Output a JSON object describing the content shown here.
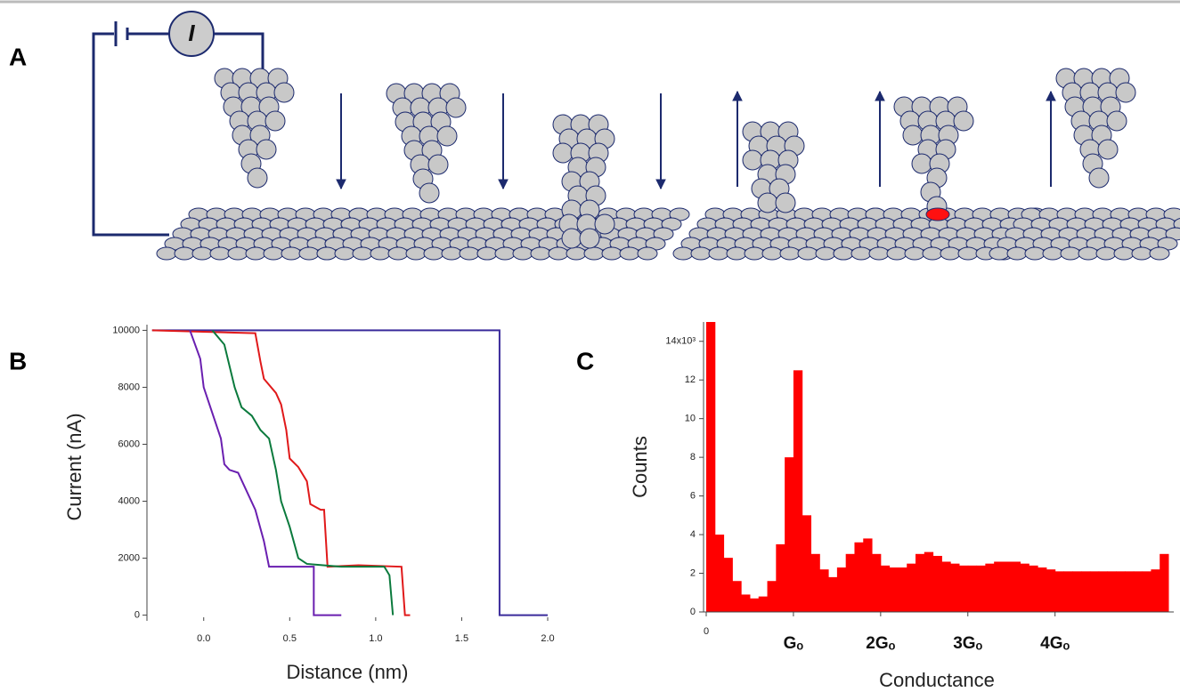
{
  "panels": {
    "a": "A",
    "b": "B",
    "c": "C",
    "meter": "I"
  },
  "chart_data": [
    {
      "type": "line",
      "x_label": "Distance (nm)",
      "y_label": "Current (nA)",
      "xlim": [
        -0.33,
        2.0
      ],
      "xticks": [
        {
          "value": 0,
          "label": "0.0"
        },
        0.5,
        {
          "value": 1,
          "label": "1.0"
        },
        1.5,
        {
          "value": 2,
          "label": "2.0"
        }
      ],
      "ylim": [
        -200,
        10200
      ],
      "yticks": [
        0,
        2000,
        4000,
        6000,
        8000,
        10000
      ],
      "series": [
        {
          "color": "#3a2b9b",
          "x": [
            -0.3,
            1.72,
            1.72,
            2.0
          ],
          "values": [
            10000,
            10000,
            0,
            0
          ]
        },
        {
          "color": "#e0191a",
          "x": [
            -0.3,
            0.3,
            0.33,
            0.35,
            0.42,
            0.45,
            0.48,
            0.5,
            0.55,
            0.6,
            0.62,
            0.68,
            0.7,
            0.72,
            0.9,
            1.15,
            1.17,
            1.2
          ],
          "values": [
            10000,
            9900,
            8900,
            8300,
            7800,
            7400,
            6500,
            5500,
            5200,
            4700,
            3900,
            3700,
            3700,
            1700,
            1750,
            1700,
            0,
            0
          ]
        },
        {
          "color": "#0b7a3d",
          "x": [
            0.05,
            0.12,
            0.18,
            0.22,
            0.28,
            0.33,
            0.38,
            0.42,
            0.45,
            0.5,
            0.55,
            0.6,
            0.8,
            1.05,
            1.08,
            1.1
          ],
          "values": [
            10000,
            9500,
            8000,
            7300,
            7000,
            6500,
            6200,
            5100,
            4000,
            3100,
            2000,
            1800,
            1700,
            1700,
            1400,
            0
          ]
        },
        {
          "color": "#6a1fb0",
          "x": [
            -0.08,
            -0.02,
            0.0,
            0.05,
            0.1,
            0.12,
            0.15,
            0.2,
            0.3,
            0.35,
            0.38,
            0.5,
            0.64,
            0.64,
            0.8
          ],
          "values": [
            10000,
            9000,
            8000,
            7100,
            6200,
            5300,
            5100,
            5000,
            3700,
            2600,
            1700,
            1700,
            1700,
            0,
            0
          ]
        }
      ]
    },
    {
      "type": "histogram",
      "x_label": "Conductance",
      "y_label": "Counts",
      "color": "#ff0000",
      "xlim": [
        0,
        5.3
      ],
      "xticks": [
        0,
        {
          "value": 1,
          "label": "Gₒ"
        },
        {
          "value": 2,
          "label": "2Gₒ"
        },
        {
          "value": 3,
          "label": "3Gₒ"
        },
        {
          "value": 4,
          "label": "4Gₒ"
        }
      ],
      "ylim": [
        0,
        15
      ],
      "yticks": [
        0,
        2,
        4,
        6,
        8,
        10,
        12,
        {
          "value": 14,
          "label": "14x10³"
        }
      ],
      "bins": [
        0,
        0.1,
        0.2,
        0.3,
        0.4,
        0.5,
        0.6,
        0.7,
        0.8,
        0.9,
        1.0,
        1.1,
        1.2,
        1.3,
        1.4,
        1.5,
        1.6,
        1.7,
        1.8,
        1.9,
        2.0,
        2.1,
        2.2,
        2.3,
        2.4,
        2.5,
        2.6,
        2.7,
        2.8,
        2.9,
        3.0,
        3.1,
        3.2,
        3.3,
        3.4,
        3.5,
        3.6,
        3.7,
        3.8,
        3.9,
        4.0,
        4.1,
        4.2,
        4.3,
        4.4,
        4.5,
        4.6,
        4.7,
        4.8,
        4.9,
        5.0,
        5.1,
        5.2,
        5.3
      ],
      "values": [
        15,
        4.0,
        2.8,
        1.6,
        0.9,
        0.7,
        0.8,
        1.6,
        3.5,
        8.0,
        12.5,
        5.0,
        3.0,
        2.2,
        1.8,
        2.3,
        3.0,
        3.6,
        3.8,
        3.0,
        2.4,
        2.3,
        2.3,
        2.5,
        3.0,
        3.1,
        2.9,
        2.6,
        2.5,
        2.4,
        2.4,
        2.4,
        2.5,
        2.6,
        2.6,
        2.6,
        2.5,
        2.4,
        2.3,
        2.2,
        2.1,
        2.1,
        2.1,
        2.1,
        2.1,
        2.1,
        2.1,
        2.1,
        2.1,
        2.1,
        2.1,
        2.2,
        3.0
      ]
    }
  ]
}
